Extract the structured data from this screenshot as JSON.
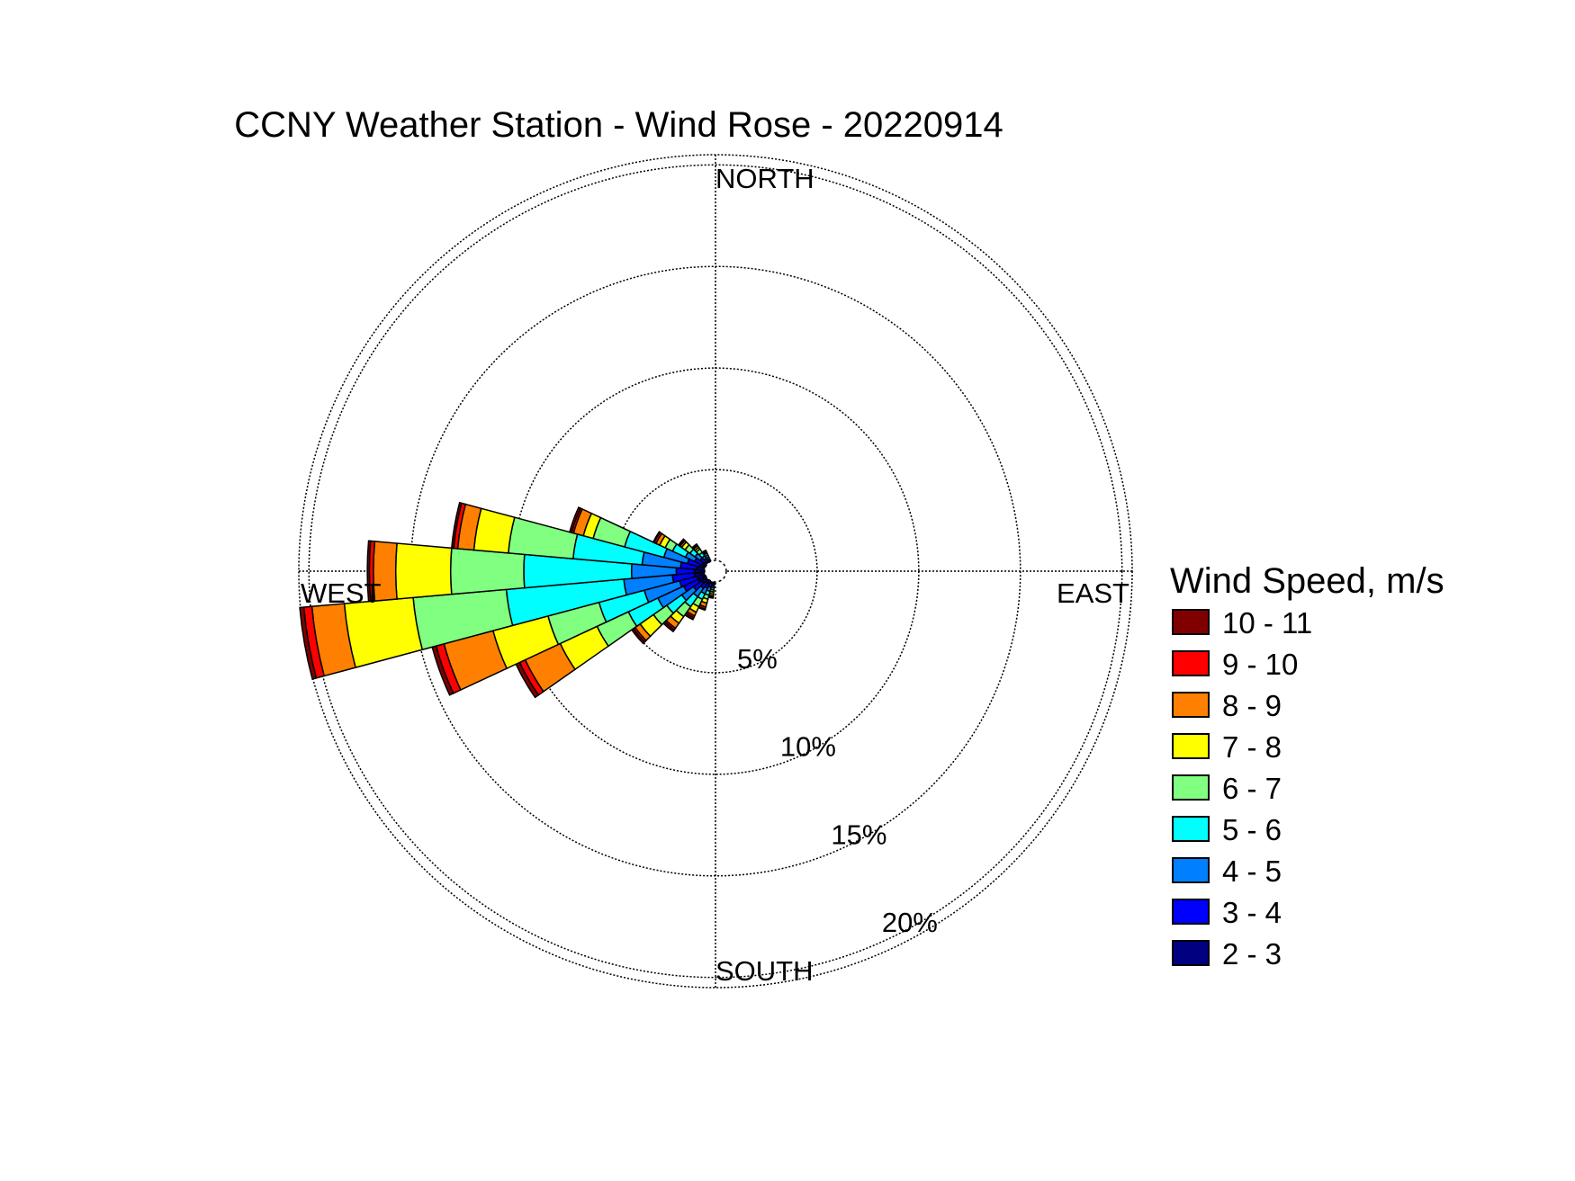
{
  "chart_data": {
    "type": "wind-rose",
    "title": "CCNY Weather Station - Wind Rose - 20220914",
    "direction_labels": {
      "north": "NORTH",
      "east": "EAST",
      "south": "SOUTH",
      "west": "WEST"
    },
    "radial_ticks": [
      {
        "value": 5,
        "label": "5%"
      },
      {
        "value": 10,
        "label": "10%"
      },
      {
        "value": 15,
        "label": "15%"
      },
      {
        "value": 20,
        "label": "20%"
      }
    ],
    "rmax": 20.5,
    "grid": true,
    "legend": {
      "title": "Wind Speed, m/s",
      "placement": "right",
      "bins": [
        {
          "label": "10 - 11",
          "color": "#800000"
        },
        {
          "label": "9 - 10",
          "color": "#ff0000"
        },
        {
          "label": "8 - 9",
          "color": "#ff8000"
        },
        {
          "label": "7 - 8",
          "color": "#ffff00"
        },
        {
          "label": "6 - 7",
          "color": "#80ff80"
        },
        {
          "label": "5 - 6",
          "color": "#00ffff"
        },
        {
          "label": "4 - 5",
          "color": "#0080ff"
        },
        {
          "label": "3 - 4",
          "color": "#0000ff"
        },
        {
          "label": "2 - 3",
          "color": "#000080"
        }
      ]
    },
    "bin_order_inner_to_outer": [
      "2 - 3",
      "3 - 4",
      "4 - 5",
      "5 - 6",
      "6 - 7",
      "7 - 8",
      "8 - 9",
      "9 - 10",
      "10 - 11"
    ],
    "sector_width_deg": 10,
    "sectors": [
      {
        "direction_deg": 190,
        "cumulative_percent": [
          0.1,
          0.2,
          0.3,
          0.4,
          0.5,
          0.6,
          0.7,
          0.75,
          0.8
        ]
      },
      {
        "direction_deg": 200,
        "cumulative_percent": [
          0.1,
          0.3,
          0.5,
          0.7,
          0.9,
          1.1,
          1.3,
          1.4,
          1.45
        ]
      },
      {
        "direction_deg": 210,
        "cumulative_percent": [
          0.2,
          0.4,
          0.7,
          1.0,
          1.4,
          1.7,
          1.9,
          2.0,
          2.1
        ]
      },
      {
        "direction_deg": 220,
        "cumulative_percent": [
          0.2,
          0.5,
          1.0,
          1.6,
          2.2,
          2.6,
          2.9,
          3.0,
          3.1
        ]
      },
      {
        "direction_deg": 230,
        "cumulative_percent": [
          0.3,
          0.8,
          1.5,
          2.4,
          3.2,
          4.0,
          4.3,
          4.4,
          4.5
        ]
      },
      {
        "direction_deg": 240,
        "cumulative_percent": [
          0.4,
          1.2,
          2.6,
          4.2,
          5.9,
          7.9,
          9.8,
          10.1,
          10.3
        ]
      },
      {
        "direction_deg": 250,
        "cumulative_percent": [
          0.4,
          1.3,
          3.1,
          5.4,
          8.0,
          10.8,
          13.3,
          13.7,
          13.9
        ]
      },
      {
        "direction_deg": 260,
        "cumulative_percent": [
          0.5,
          1.6,
          4.0,
          9.8,
          14.4,
          17.8,
          19.4,
          19.8,
          20.0
        ]
      },
      {
        "direction_deg": 270,
        "cumulative_percent": [
          0.5,
          1.4,
          3.6,
          8.9,
          12.5,
          15.2,
          16.3,
          16.5,
          16.6
        ]
      },
      {
        "direction_deg": 280,
        "cumulative_percent": [
          0.4,
          1.2,
          3.1,
          6.5,
          9.7,
          11.4,
          12.2,
          12.4,
          12.5
        ]
      },
      {
        "direction_deg": 290,
        "cumulative_percent": [
          0.3,
          0.9,
          2.1,
          4.1,
          5.7,
          6.2,
          6.7,
          6.8,
          6.9
        ]
      },
      {
        "direction_deg": 300,
        "cumulative_percent": [
          0.2,
          0.6,
          1.1,
          1.8,
          2.2,
          2.5,
          2.7,
          2.8,
          2.85
        ]
      },
      {
        "direction_deg": 310,
        "cumulative_percent": [
          0.15,
          0.4,
          0.7,
          1.0,
          1.3,
          1.5,
          1.6,
          1.65,
          1.7
        ]
      },
      {
        "direction_deg": 320,
        "cumulative_percent": [
          0.1,
          0.25,
          0.4,
          0.6,
          0.8,
          0.9,
          1.0,
          1.05,
          1.1
        ]
      },
      {
        "direction_deg": 330,
        "cumulative_percent": [
          0.05,
          0.15,
          0.25,
          0.35,
          0.45,
          0.5,
          0.55,
          0.6,
          0.6
        ]
      }
    ]
  }
}
